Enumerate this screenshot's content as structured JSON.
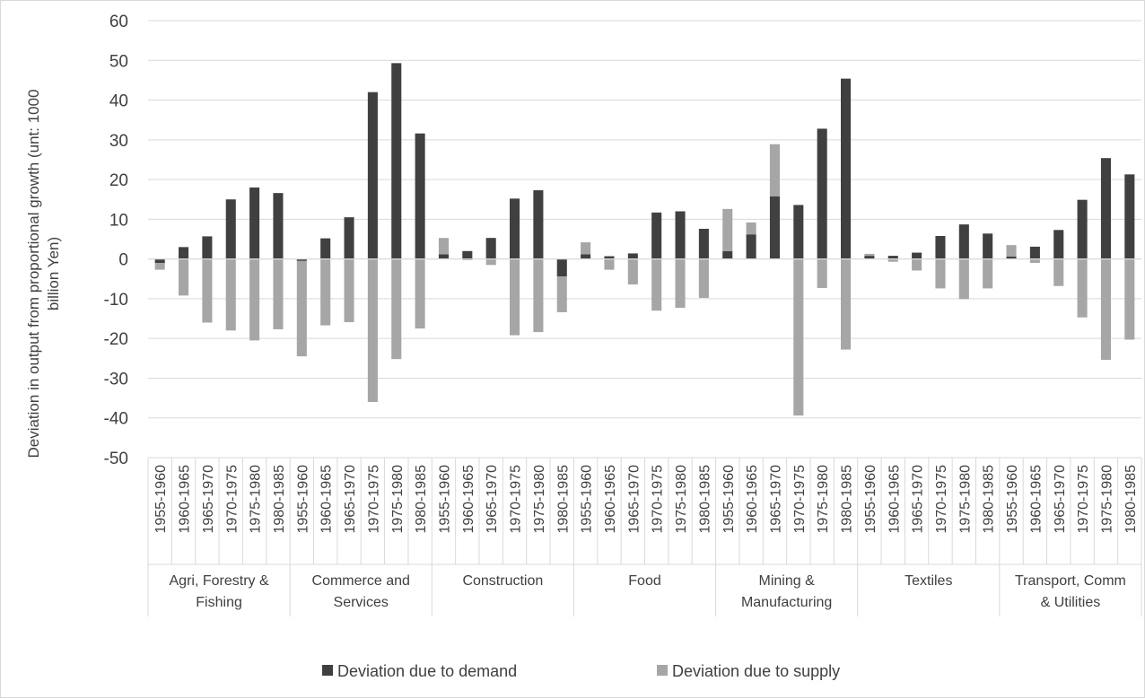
{
  "chart_data": {
    "type": "bar",
    "stacked": true,
    "title": "",
    "ylabel": "Deviation in output from proportional growth (unt: 1000 billion Yen)",
    "ylim": [
      -50,
      60
    ],
    "yticks": [
      60,
      50,
      40,
      30,
      20,
      10,
      0,
      -10,
      -20,
      -30,
      -40,
      -50
    ],
    "grid": true,
    "legend_position": "bottom",
    "periods": [
      "1955-1960",
      "1960-1965",
      "1965-1970",
      "1970-1975",
      "1975-1980",
      "1980-1985"
    ],
    "groups": [
      {
        "name": "Agri, Forestry & Fishing",
        "demand": [
          -1.0,
          3.0,
          5.7,
          15.0,
          18.0,
          16.6
        ],
        "supply": [
          -1.7,
          -9.2,
          -16.0,
          -18.0,
          -20.5,
          -17.7
        ]
      },
      {
        "name": "Commerce and Services",
        "demand": [
          -0.5,
          5.2,
          10.5,
          42.0,
          49.3,
          31.6
        ],
        "supply": [
          -24.0,
          -16.7,
          -15.9,
          -36.0,
          -25.2,
          -17.5
        ]
      },
      {
        "name": "Construction",
        "demand": [
          1.2,
          2.0,
          5.3,
          15.2,
          17.3,
          -4.4
        ],
        "supply": [
          4.1,
          -0.3,
          -1.5,
          -19.2,
          -18.4,
          -9.0
        ]
      },
      {
        "name": "Food",
        "demand": [
          1.2,
          0.7,
          1.4,
          11.7,
          12.0,
          7.6
        ],
        "supply": [
          3.0,
          -2.7,
          -6.4,
          -13.0,
          -12.3,
          -9.8
        ]
      },
      {
        "name": "Mining & Manufacturing",
        "demand": [
          2.0,
          6.2,
          15.8,
          13.6,
          32.8,
          45.4
        ],
        "supply": [
          10.6,
          3.0,
          13.1,
          -39.4,
          -7.3,
          -22.8
        ]
      },
      {
        "name": "Textiles",
        "demand": [
          0.8,
          0.8,
          1.6,
          5.8,
          8.7,
          6.4
        ],
        "supply": [
          0.5,
          -0.7,
          -2.9,
          -7.4,
          -10.1,
          -7.4
        ]
      },
      {
        "name": "Transport, Comm & Utilities",
        "demand": [
          0.6,
          3.1,
          7.3,
          14.9,
          25.4,
          21.3
        ],
        "supply": [
          2.9,
          -1.0,
          -6.8,
          -14.7,
          -25.4,
          -20.3
        ]
      }
    ],
    "series": [
      {
        "name": "Deviation due to demand",
        "color": "#404040"
      },
      {
        "name": "Deviation due to supply",
        "color": "#a6a6a6"
      }
    ],
    "group_label_lines": [
      [
        "Agri, Forestry &",
        "Fishing"
      ],
      [
        "Commerce and",
        "Services"
      ],
      [
        "Construction"
      ],
      [
        "Food"
      ],
      [
        "Mining &",
        "Manufacturing"
      ],
      [
        "Textiles"
      ],
      [
        "Transport, Comm",
        "& Utilities"
      ]
    ]
  }
}
